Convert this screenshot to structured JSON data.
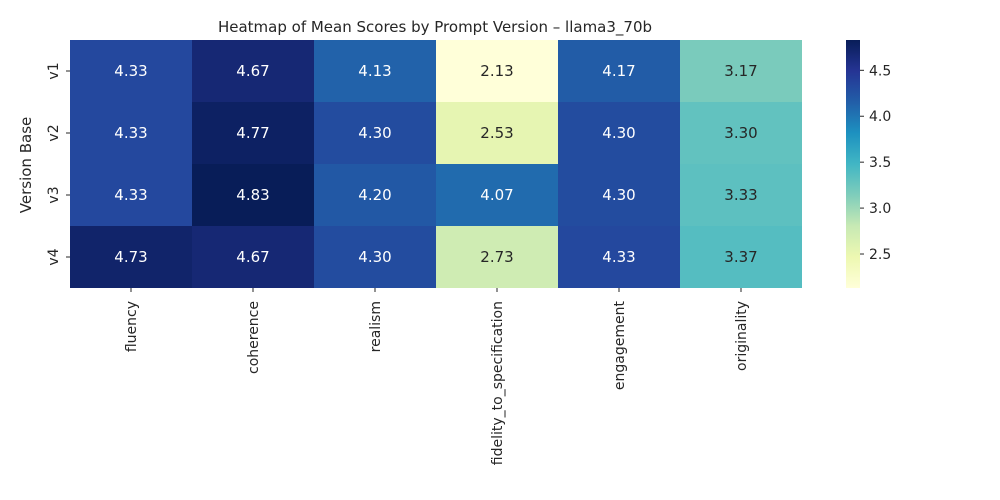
{
  "chart_data": {
    "type": "heatmap",
    "title": "Heatmap of Mean Scores by Prompt Version – llama3_70b",
    "xlabel": "",
    "ylabel": "Version Base",
    "columns": [
      "fluency",
      "coherence",
      "realism",
      "fidelity_to_specification",
      "engagement",
      "originality"
    ],
    "rows": [
      "v1",
      "v2",
      "v3",
      "v4"
    ],
    "values": [
      [
        4.33,
        4.67,
        4.13,
        2.13,
        4.17,
        3.17
      ],
      [
        4.33,
        4.77,
        4.3,
        2.53,
        4.3,
        3.3
      ],
      [
        4.33,
        4.83,
        4.2,
        4.07,
        4.3,
        3.33
      ],
      [
        4.73,
        4.67,
        4.3,
        2.73,
        4.33,
        3.37
      ]
    ],
    "colormap": "YlGnBu",
    "value_range": [
      2.13,
      4.83
    ],
    "colorbar_ticks": [
      "2.5",
      "3.0",
      "3.5",
      "4.0",
      "4.5"
    ],
    "grid": false
  }
}
